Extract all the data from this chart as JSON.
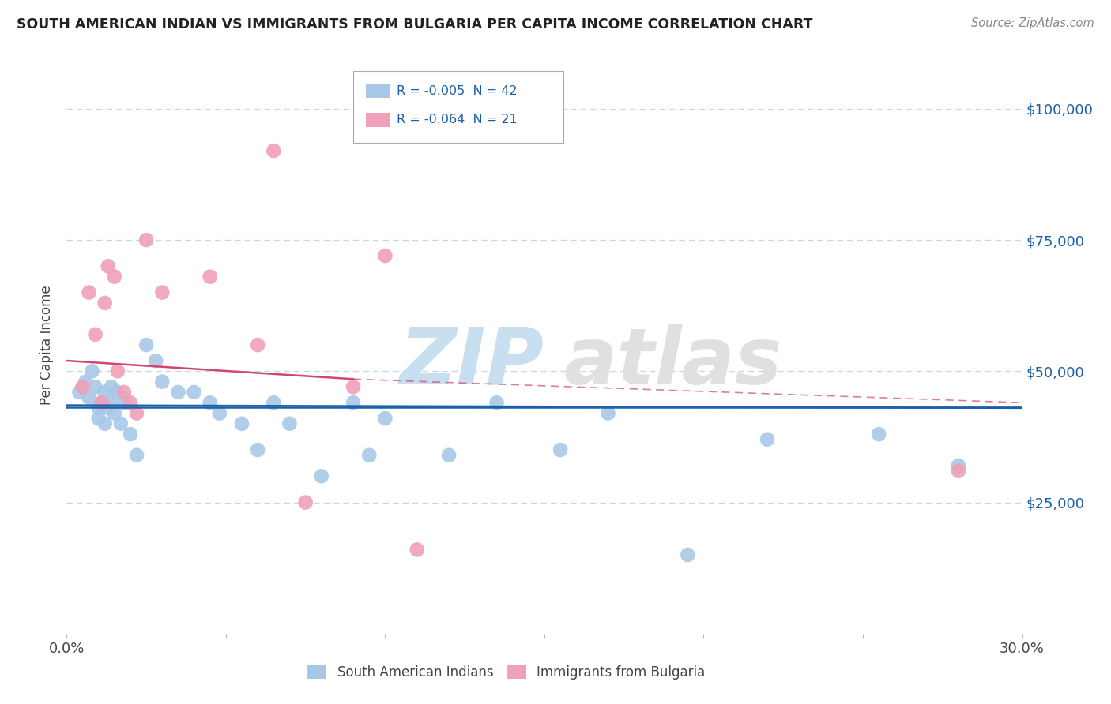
{
  "title": "SOUTH AMERICAN INDIAN VS IMMIGRANTS FROM BULGARIA PER CAPITA INCOME CORRELATION CHART",
  "source": "Source: ZipAtlas.com",
  "ylabel": "Per Capita Income",
  "xlim": [
    0.0,
    0.3
  ],
  "ylim": [
    0,
    110000
  ],
  "yticks": [
    0,
    25000,
    50000,
    75000,
    100000
  ],
  "xticks": [
    0.0,
    0.05,
    0.1,
    0.15,
    0.2,
    0.25,
    0.3
  ],
  "legend_R1": "-0.005",
  "legend_N1": "42",
  "legend_R2": "-0.064",
  "legend_N2": "21",
  "color_blue": "#a8c8e8",
  "color_pink": "#f0a0b8",
  "line_blue": "#1a5fa8",
  "line_pink": "#d04870",
  "line_dashed_color": "#c0d8f0",
  "text_blue": "#1a5fa8",
  "text_dark": "#444444",
  "background": "#ffffff",
  "blue_scatter_x": [
    0.004,
    0.006,
    0.007,
    0.008,
    0.009,
    0.01,
    0.01,
    0.011,
    0.012,
    0.012,
    0.013,
    0.014,
    0.014,
    0.015,
    0.016,
    0.017,
    0.018,
    0.02,
    0.022,
    0.025,
    0.028,
    0.03,
    0.035,
    0.04,
    0.045,
    0.048,
    0.055,
    0.06,
    0.065,
    0.07,
    0.08,
    0.09,
    0.095,
    0.1,
    0.12,
    0.135,
    0.155,
    0.17,
    0.195,
    0.22,
    0.255,
    0.28
  ],
  "blue_scatter_y": [
    46000,
    48000,
    45000,
    50000,
    47000,
    43000,
    41000,
    44000,
    46000,
    40000,
    43000,
    47000,
    44000,
    42000,
    46000,
    40000,
    44000,
    38000,
    34000,
    55000,
    52000,
    48000,
    46000,
    46000,
    44000,
    42000,
    40000,
    35000,
    44000,
    40000,
    30000,
    44000,
    34000,
    41000,
    34000,
    44000,
    35000,
    42000,
    15000,
    37000,
    38000,
    32000
  ],
  "pink_scatter_x": [
    0.005,
    0.007,
    0.009,
    0.011,
    0.012,
    0.013,
    0.015,
    0.016,
    0.018,
    0.02,
    0.022,
    0.025,
    0.03,
    0.045,
    0.06,
    0.065,
    0.075,
    0.09,
    0.1,
    0.11,
    0.28
  ],
  "pink_scatter_y": [
    47000,
    65000,
    57000,
    44000,
    63000,
    70000,
    68000,
    50000,
    46000,
    44000,
    42000,
    75000,
    65000,
    68000,
    55000,
    92000,
    25000,
    47000,
    72000,
    16000,
    31000
  ],
  "blue_trend_x": [
    0.0,
    0.3
  ],
  "blue_trend_y": [
    43500,
    43000
  ],
  "pink_trend_x": [
    0.01,
    0.3
  ],
  "pink_trend_y": [
    52000,
    44000
  ],
  "blue_hline_y": 43200,
  "figsize": [
    14.06,
    8.92
  ],
  "dpi": 100
}
